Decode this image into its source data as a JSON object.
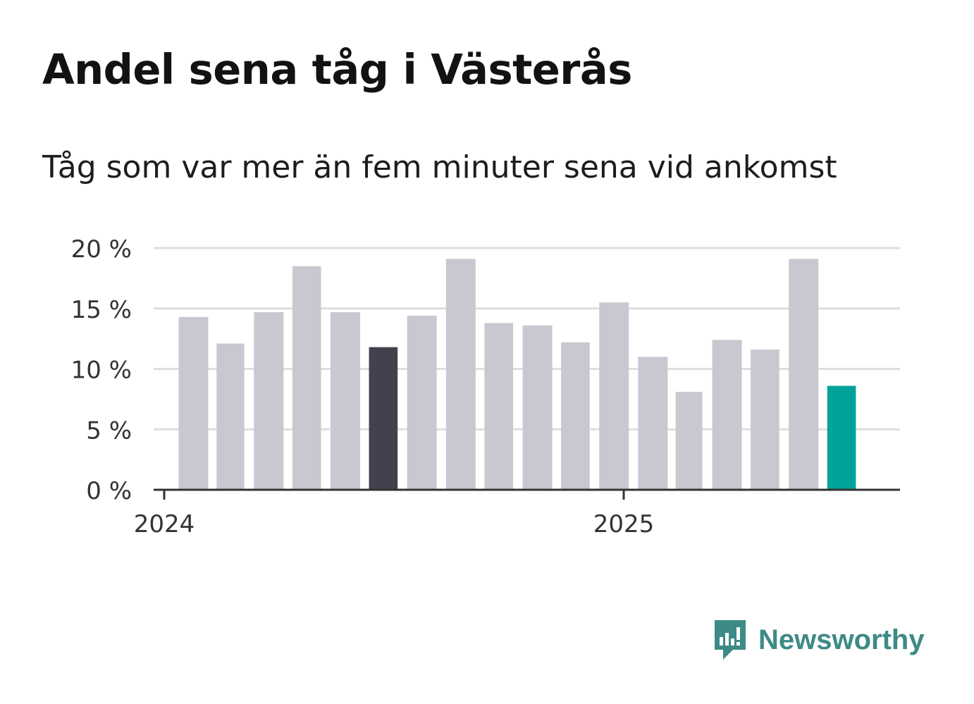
{
  "title": "Andel sena tåg i Västerås",
  "subtitle": "Tåg som var mer än fem minuter sena vid ankomst",
  "brand": {
    "name": "Newsworthy",
    "icon": "newsworthy-logo-icon",
    "color": "#3d8a86"
  },
  "chart_data": {
    "type": "bar",
    "title": "Andel sena tåg i Västerås",
    "subtitle": "Tåg som var mer än fem minuter sena vid ankomst",
    "xlabel": "",
    "ylabel": "",
    "ylim": [
      0,
      20
    ],
    "yticks": [
      0,
      5,
      10,
      15,
      20
    ],
    "ytick_labels": [
      "0 %",
      "5 %",
      "10 %",
      "15 %",
      "20 %"
    ],
    "x_tick_labels": [
      {
        "label": "2024",
        "date": "2024-01-01"
      },
      {
        "label": "2025",
        "date": "2025-01-01"
      }
    ],
    "grid": true,
    "x": [
      "2024-01",
      "2024-02",
      "2024-03",
      "2024-04",
      "2024-05",
      "2024-06",
      "2024-07",
      "2024-08",
      "2024-09",
      "2024-10",
      "2024-11",
      "2024-12",
      "2025-01",
      "2025-02",
      "2025-03",
      "2025-04",
      "2025-05",
      "2025-06"
    ],
    "values": [
      14.3,
      12.1,
      14.7,
      18.5,
      14.7,
      11.8,
      14.4,
      19.1,
      13.8,
      13.6,
      12.2,
      15.5,
      11.0,
      8.1,
      12.4,
      11.6,
      19.1,
      8.6
    ],
    "colors": {
      "default": "#c8c8d0",
      "highlight": "#42414d",
      "latest": "#00a39a",
      "grid": "#dedede",
      "axis": "#333333"
    },
    "highlight_index": 5,
    "latest_index": 17
  }
}
